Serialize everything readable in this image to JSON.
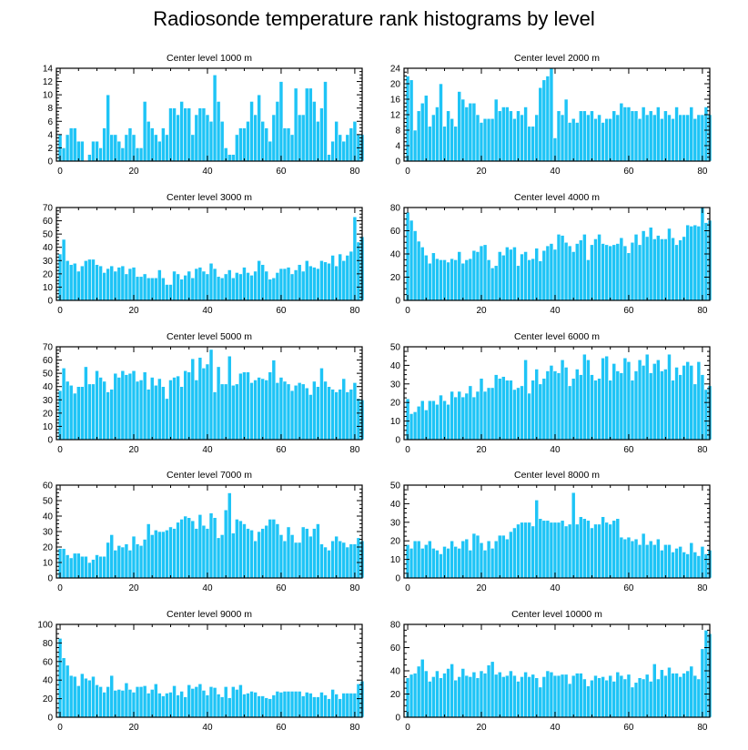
{
  "title": "Radiosonde temperature rank histograms by level",
  "colors": {
    "bar": "#1ec4f6",
    "bar_edge": "#ffffff",
    "frame": "#000000"
  },
  "chart_data": [
    {
      "type": "bar",
      "title": "Center level 1000 m",
      "xlabel": "",
      "ylabel": "",
      "xlim": [
        -1,
        82
      ],
      "ylim": [
        0,
        14
      ],
      "xticks": [
        0,
        20,
        40,
        60,
        80
      ],
      "yticks": [
        0,
        2,
        4,
        6,
        8,
        10,
        12,
        14
      ],
      "x_start": 0,
      "values": [
        4,
        2,
        4,
        5,
        5,
        3,
        3,
        0,
        1,
        3,
        3,
        2,
        5,
        10,
        4,
        4,
        3,
        2,
        4,
        5,
        4,
        2,
        2,
        9,
        6,
        5,
        4,
        3,
        5,
        4,
        8,
        8,
        7,
        9,
        8,
        8,
        4,
        7,
        8,
        8,
        7,
        6,
        13,
        9,
        6,
        2,
        1,
        1,
        4,
        5,
        5,
        6,
        9,
        7,
        10,
        6,
        5,
        3,
        7,
        9,
        12,
        5,
        5,
        4,
        11,
        7,
        7,
        11,
        11,
        9,
        6,
        8,
        12,
        1,
        3,
        6,
        4,
        3,
        4,
        5,
        6,
        4,
        4
      ]
    },
    {
      "type": "bar",
      "title": "Center level 2000 m",
      "xlabel": "",
      "ylabel": "",
      "xlim": [
        -1,
        82
      ],
      "ylim": [
        0,
        24
      ],
      "xticks": [
        0,
        20,
        40,
        60,
        80
      ],
      "yticks": [
        0,
        4,
        8,
        12,
        16,
        20,
        24
      ],
      "x_start": 0,
      "values": [
        22,
        21,
        8,
        13,
        15,
        17,
        9,
        12,
        14,
        20,
        9,
        13,
        11,
        9,
        18,
        16,
        14,
        15,
        15,
        12,
        10,
        11,
        11,
        11,
        16,
        13,
        14,
        14,
        13,
        11,
        13,
        12,
        14,
        9,
        9,
        12,
        19,
        21,
        22,
        24,
        6,
        13,
        12,
        16,
        10,
        11,
        10,
        13,
        13,
        12,
        13,
        11,
        12,
        10,
        11,
        11,
        13,
        12,
        15,
        14,
        14,
        13,
        13,
        11,
        14,
        12,
        13,
        12,
        14,
        11,
        13,
        12,
        11,
        14,
        12,
        12,
        12,
        14,
        11,
        12,
        12,
        14,
        12
      ]
    },
    {
      "type": "bar",
      "title": "Center level 3000 m",
      "xlabel": "",
      "ylabel": "",
      "xlim": [
        -1,
        82
      ],
      "ylim": [
        0,
        70
      ],
      "xticks": [
        0,
        20,
        40,
        60,
        80
      ],
      "yticks": [
        0,
        10,
        20,
        30,
        40,
        50,
        60,
        70
      ],
      "x_start": 0,
      "values": [
        35,
        46,
        30,
        27,
        28,
        22,
        26,
        30,
        31,
        31,
        27,
        26,
        21,
        24,
        26,
        22,
        25,
        26,
        20,
        24,
        25,
        18,
        18,
        20,
        17,
        17,
        17,
        23,
        17,
        12,
        12,
        22,
        20,
        16,
        19,
        22,
        17,
        24,
        25,
        22,
        20,
        28,
        24,
        18,
        17,
        20,
        23,
        17,
        21,
        20,
        25,
        21,
        19,
        22,
        30,
        27,
        22,
        16,
        17,
        21,
        24,
        24,
        25,
        20,
        23,
        27,
        22,
        30,
        26,
        25,
        24,
        30,
        29,
        28,
        34,
        26,
        35,
        30,
        34,
        37,
        63,
        44,
        48
      ]
    },
    {
      "type": "bar",
      "title": "Center level 4000 m",
      "xlabel": "",
      "ylabel": "",
      "xlim": [
        -1,
        82
      ],
      "ylim": [
        0,
        80
      ],
      "xticks": [
        0,
        20,
        40,
        60,
        80
      ],
      "yticks": [
        0,
        20,
        40,
        60,
        80
      ],
      "x_start": 0,
      "values": [
        76,
        69,
        60,
        51,
        46,
        39,
        32,
        41,
        36,
        35,
        35,
        33,
        36,
        35,
        42,
        32,
        35,
        36,
        43,
        42,
        47,
        48,
        35,
        28,
        30,
        42,
        39,
        46,
        44,
        46,
        30,
        40,
        42,
        35,
        36,
        45,
        34,
        43,
        47,
        49,
        44,
        57,
        56,
        50,
        47,
        42,
        49,
        52,
        57,
        35,
        48,
        53,
        57,
        49,
        48,
        47,
        48,
        49,
        54,
        47,
        41,
        50,
        57,
        48,
        60,
        55,
        63,
        53,
        56,
        53,
        53,
        62,
        54,
        48,
        52,
        55,
        65,
        64,
        65,
        64,
        80,
        67,
        69
      ]
    },
    {
      "type": "bar",
      "title": "Center level 5000 m",
      "xlabel": "",
      "ylabel": "",
      "xlim": [
        -1,
        82
      ],
      "ylim": [
        0,
        70
      ],
      "xticks": [
        0,
        20,
        40,
        60,
        80
      ],
      "yticks": [
        0,
        10,
        20,
        30,
        40,
        50,
        60,
        70
      ],
      "x_start": 0,
      "values": [
        37,
        54,
        44,
        41,
        35,
        40,
        40,
        55,
        42,
        42,
        52,
        47,
        44,
        36,
        38,
        50,
        47,
        52,
        49,
        50,
        52,
        44,
        45,
        51,
        38,
        47,
        41,
        46,
        40,
        31,
        45,
        47,
        48,
        40,
        52,
        51,
        61,
        45,
        62,
        54,
        57,
        68,
        36,
        55,
        42,
        42,
        63,
        41,
        42,
        50,
        51,
        51,
        43,
        45,
        47,
        46,
        45,
        51,
        60,
        43,
        47,
        44,
        42,
        37,
        41,
        43,
        42,
        39,
        34,
        44,
        40,
        54,
        44,
        40,
        38,
        36,
        38,
        46,
        36,
        38,
        43,
        31,
        30
      ]
    },
    {
      "type": "bar",
      "title": "Center level 6000 m",
      "xlabel": "",
      "ylabel": "",
      "xlim": [
        -1,
        82
      ],
      "ylim": [
        0,
        50
      ],
      "xticks": [
        0,
        20,
        40,
        60,
        80
      ],
      "yticks": [
        0,
        10,
        20,
        30,
        40,
        50
      ],
      "x_start": 0,
      "values": [
        22,
        14,
        15,
        18,
        21,
        16,
        21,
        21,
        19,
        24,
        21,
        19,
        26,
        23,
        26,
        23,
        25,
        29,
        23,
        26,
        33,
        26,
        28,
        28,
        35,
        33,
        34,
        32,
        32,
        27,
        28,
        29,
        43,
        25,
        32,
        38,
        30,
        33,
        37,
        40,
        37,
        36,
        43,
        39,
        29,
        33,
        38,
        35,
        46,
        43,
        35,
        32,
        33,
        44,
        45,
        32,
        41,
        37,
        36,
        44,
        42,
        32,
        37,
        43,
        40,
        46,
        36,
        41,
        43,
        37,
        38,
        46,
        32,
        39,
        35,
        40,
        42,
        40,
        30,
        42,
        35,
        27,
        29
      ]
    },
    {
      "type": "bar",
      "title": "Center level 7000 m",
      "xlabel": "",
      "ylabel": "",
      "xlim": [
        -1,
        82
      ],
      "ylim": [
        0,
        60
      ],
      "xticks": [
        0,
        20,
        40,
        60,
        80
      ],
      "yticks": [
        0,
        10,
        20,
        30,
        40,
        50,
        60
      ],
      "x_start": 0,
      "values": [
        19,
        19,
        15,
        13,
        16,
        16,
        14,
        14,
        10,
        12,
        15,
        14,
        14,
        23,
        28,
        18,
        21,
        20,
        22,
        18,
        27,
        22,
        21,
        25,
        35,
        28,
        31,
        30,
        30,
        31,
        33,
        32,
        36,
        38,
        40,
        39,
        37,
        32,
        41,
        34,
        32,
        42,
        39,
        26,
        28,
        44,
        55,
        29,
        38,
        37,
        35,
        32,
        31,
        24,
        30,
        32,
        34,
        38,
        38,
        35,
        28,
        24,
        33,
        28,
        23,
        23,
        33,
        32,
        27,
        32,
        35,
        22,
        20,
        18,
        24,
        27,
        24,
        23,
        20,
        22,
        22,
        26,
        24
      ]
    },
    {
      "type": "bar",
      "title": "Center level 8000 m",
      "xlabel": "",
      "ylabel": "",
      "xlim": [
        -1,
        82
      ],
      "ylim": [
        0,
        50
      ],
      "xticks": [
        0,
        20,
        40,
        60,
        80
      ],
      "yticks": [
        0,
        10,
        20,
        30,
        40,
        50
      ],
      "x_start": 0,
      "values": [
        18,
        16,
        20,
        20,
        16,
        18,
        20,
        16,
        15,
        13,
        17,
        16,
        20,
        17,
        16,
        20,
        21,
        15,
        24,
        23,
        19,
        15,
        20,
        16,
        20,
        23,
        23,
        21,
        25,
        27,
        29,
        30,
        30,
        30,
        28,
        42,
        32,
        31,
        31,
        30,
        30,
        30,
        31,
        28,
        29,
        46,
        29,
        33,
        32,
        31,
        27,
        29,
        29,
        33,
        30,
        29,
        31,
        32,
        22,
        21,
        22,
        20,
        21,
        18,
        24,
        18,
        20,
        18,
        21,
        15,
        18,
        18,
        14,
        16,
        17,
        14,
        13,
        19,
        14,
        12,
        17,
        13,
        15
      ]
    },
    {
      "type": "bar",
      "title": "Center level 9000 m",
      "xlabel": "",
      "ylabel": "",
      "xlim": [
        -1,
        82
      ],
      "ylim": [
        0,
        100
      ],
      "xticks": [
        0,
        20,
        40,
        60,
        80
      ],
      "yticks": [
        0,
        20,
        40,
        60,
        80,
        100
      ],
      "x_start": 0,
      "values": [
        85,
        64,
        56,
        45,
        44,
        34,
        47,
        42,
        40,
        44,
        35,
        33,
        27,
        33,
        45,
        29,
        30,
        29,
        37,
        30,
        27,
        33,
        33,
        34,
        26,
        30,
        36,
        26,
        23,
        26,
        27,
        34,
        24,
        28,
        22,
        35,
        31,
        33,
        36,
        29,
        24,
        33,
        32,
        25,
        22,
        33,
        21,
        33,
        30,
        35,
        25,
        26,
        28,
        27,
        23,
        23,
        21,
        20,
        24,
        28,
        27,
        28,
        28,
        28,
        28,
        28,
        23,
        27,
        26,
        22,
        22,
        27,
        24,
        20,
        30,
        25,
        20,
        26,
        26,
        26,
        26,
        36,
        39
      ]
    },
    {
      "type": "bar",
      "title": "Center level 10000 m",
      "xlabel": "",
      "ylabel": "",
      "xlim": [
        -1,
        82
      ],
      "ylim": [
        0,
        80
      ],
      "xticks": [
        0,
        20,
        40,
        60,
        80
      ],
      "yticks": [
        0,
        20,
        40,
        60,
        80
      ],
      "x_start": 0,
      "values": [
        34,
        37,
        38,
        44,
        50,
        40,
        31,
        35,
        40,
        34,
        38,
        42,
        46,
        32,
        35,
        42,
        36,
        35,
        39,
        34,
        40,
        38,
        45,
        48,
        37,
        39,
        35,
        36,
        40,
        36,
        31,
        35,
        39,
        35,
        37,
        34,
        26,
        35,
        40,
        39,
        36,
        36,
        37,
        37,
        29,
        36,
        38,
        38,
        33,
        27,
        32,
        36,
        34,
        35,
        32,
        36,
        31,
        39,
        36,
        33,
        37,
        26,
        30,
        34,
        33,
        37,
        31,
        46,
        33,
        41,
        36,
        43,
        38,
        38,
        35,
        38,
        40,
        44,
        36,
        33,
        59,
        75,
        72
      ]
    }
  ]
}
